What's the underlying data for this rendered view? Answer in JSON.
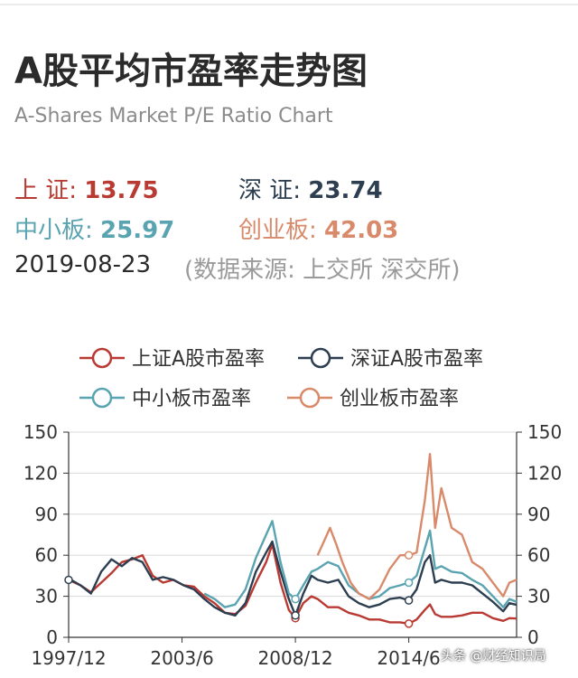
{
  "header": {
    "title": "A股平均市盈率走势图",
    "subtitle": "A-Shares Market P/E Ratio Chart"
  },
  "stats": {
    "sh": {
      "label": "上 证: ",
      "value": "13.75",
      "color": "#b93a32"
    },
    "sz": {
      "label": "深 证: ",
      "value": "23.74",
      "color": "#2c3e50"
    },
    "sme": {
      "label": "中小板: ",
      "value": "25.97",
      "color": "#5aa3b0"
    },
    "gem": {
      "label": "创业板: ",
      "value": "42.03",
      "color": "#d88a6a"
    }
  },
  "date": "2019-08-23",
  "source": "(数据来源: 上交所 深交所)",
  "watermark": "头条 @财经知识局",
  "chart_data": {
    "type": "line",
    "x_tick_labels": [
      "1997/12",
      "2003/6",
      "2008/12",
      "2014/6"
    ],
    "x_tick_dates": [
      1997.92,
      2003.42,
      2008.92,
      2014.42
    ],
    "x_range": [
      1997.92,
      2019.65
    ],
    "ylim": [
      0,
      150
    ],
    "y_ticks": [
      0,
      30,
      60,
      90,
      120,
      150
    ],
    "grid": true,
    "legend_position": "top",
    "series": [
      {
        "name": "上证A股市盈率",
        "color": "#b93a32",
        "points": [
          [
            1997.92,
            42
          ],
          [
            1998.5,
            38
          ],
          [
            1999.0,
            33
          ],
          [
            1999.5,
            40
          ],
          [
            2000.0,
            47
          ],
          [
            2000.5,
            55
          ],
          [
            2001.0,
            57
          ],
          [
            2001.5,
            60
          ],
          [
            2002.0,
            45
          ],
          [
            2002.5,
            40
          ],
          [
            2003.0,
            42
          ],
          [
            2003.5,
            38
          ],
          [
            2004.0,
            37
          ],
          [
            2004.5,
            30
          ],
          [
            2005.0,
            25
          ],
          [
            2005.5,
            18
          ],
          [
            2006.0,
            17
          ],
          [
            2006.5,
            23
          ],
          [
            2007.0,
            40
          ],
          [
            2007.5,
            55
          ],
          [
            2007.8,
            68
          ],
          [
            2008.2,
            40
          ],
          [
            2008.6,
            20
          ],
          [
            2008.92,
            14
          ],
          [
            2009.3,
            25
          ],
          [
            2009.7,
            30
          ],
          [
            2010.0,
            28
          ],
          [
            2010.5,
            22
          ],
          [
            2011.0,
            22
          ],
          [
            2011.5,
            18
          ],
          [
            2012.0,
            16
          ],
          [
            2012.5,
            13
          ],
          [
            2013.0,
            13
          ],
          [
            2013.5,
            11
          ],
          [
            2014.0,
            11
          ],
          [
            2014.42,
            10
          ],
          [
            2014.8,
            13
          ],
          [
            2015.2,
            20
          ],
          [
            2015.45,
            24
          ],
          [
            2015.7,
            17
          ],
          [
            2016.0,
            15
          ],
          [
            2016.5,
            15
          ],
          [
            2017.0,
            16
          ],
          [
            2017.5,
            18
          ],
          [
            2018.0,
            18
          ],
          [
            2018.5,
            14
          ],
          [
            2019.0,
            12
          ],
          [
            2019.3,
            14
          ],
          [
            2019.65,
            13.75
          ]
        ],
        "markers": [
          [
            2008.92,
            14
          ],
          [
            2014.42,
            10
          ]
        ]
      },
      {
        "name": "深证A股市盈率",
        "color": "#2c3e50",
        "points": [
          [
            1997.92,
            43
          ],
          [
            1998.5,
            38
          ],
          [
            1999.0,
            32
          ],
          [
            1999.5,
            48
          ],
          [
            2000.0,
            57
          ],
          [
            2000.5,
            52
          ],
          [
            2001.0,
            58
          ],
          [
            2001.5,
            55
          ],
          [
            2002.0,
            42
          ],
          [
            2002.5,
            44
          ],
          [
            2003.0,
            42
          ],
          [
            2003.5,
            38
          ],
          [
            2004.0,
            35
          ],
          [
            2004.5,
            28
          ],
          [
            2005.0,
            22
          ],
          [
            2005.5,
            18
          ],
          [
            2006.0,
            16
          ],
          [
            2006.5,
            25
          ],
          [
            2007.0,
            48
          ],
          [
            2007.5,
            62
          ],
          [
            2007.8,
            70
          ],
          [
            2008.2,
            48
          ],
          [
            2008.6,
            28
          ],
          [
            2008.92,
            16
          ],
          [
            2009.3,
            32
          ],
          [
            2009.7,
            45
          ],
          [
            2010.0,
            42
          ],
          [
            2010.5,
            40
          ],
          [
            2011.0,
            42
          ],
          [
            2011.5,
            30
          ],
          [
            2012.0,
            25
          ],
          [
            2012.5,
            22
          ],
          [
            2013.0,
            24
          ],
          [
            2013.5,
            28
          ],
          [
            2014.0,
            29
          ],
          [
            2014.42,
            27
          ],
          [
            2014.8,
            35
          ],
          [
            2015.2,
            55
          ],
          [
            2015.45,
            60
          ],
          [
            2015.7,
            40
          ],
          [
            2016.0,
            42
          ],
          [
            2016.5,
            40
          ],
          [
            2017.0,
            40
          ],
          [
            2017.5,
            38
          ],
          [
            2018.0,
            32
          ],
          [
            2018.5,
            26
          ],
          [
            2019.0,
            19
          ],
          [
            2019.3,
            25
          ],
          [
            2019.65,
            23.74
          ]
        ],
        "markers": [
          [
            2008.92,
            16
          ],
          [
            2014.42,
            27
          ]
        ]
      },
      {
        "name": "中小板市盈率",
        "color": "#5aa3b0",
        "points": [
          [
            2004.5,
            32
          ],
          [
            2005.0,
            28
          ],
          [
            2005.5,
            22
          ],
          [
            2006.0,
            24
          ],
          [
            2006.5,
            35
          ],
          [
            2007.0,
            58
          ],
          [
            2007.5,
            75
          ],
          [
            2007.8,
            85
          ],
          [
            2008.2,
            55
          ],
          [
            2008.6,
            32
          ],
          [
            2008.92,
            28
          ],
          [
            2009.3,
            38
          ],
          [
            2009.7,
            48
          ],
          [
            2010.0,
            50
          ],
          [
            2010.5,
            55
          ],
          [
            2011.0,
            52
          ],
          [
            2011.5,
            38
          ],
          [
            2012.0,
            32
          ],
          [
            2012.5,
            28
          ],
          [
            2013.0,
            30
          ],
          [
            2013.5,
            36
          ],
          [
            2014.0,
            38
          ],
          [
            2014.42,
            40
          ],
          [
            2014.8,
            45
          ],
          [
            2015.2,
            65
          ],
          [
            2015.45,
            78
          ],
          [
            2015.7,
            50
          ],
          [
            2016.0,
            52
          ],
          [
            2016.5,
            48
          ],
          [
            2017.0,
            47
          ],
          [
            2017.5,
            42
          ],
          [
            2018.0,
            38
          ],
          [
            2018.5,
            30
          ],
          [
            2019.0,
            22
          ],
          [
            2019.3,
            28
          ],
          [
            2019.65,
            25.97
          ]
        ],
        "markers": [
          [
            2008.92,
            28
          ],
          [
            2014.42,
            40
          ]
        ]
      },
      {
        "name": "创业板市盈率",
        "color": "#d88a6a",
        "points": [
          [
            2010.0,
            60
          ],
          [
            2010.3,
            70
          ],
          [
            2010.6,
            80
          ],
          [
            2010.9,
            68
          ],
          [
            2011.2,
            55
          ],
          [
            2011.6,
            40
          ],
          [
            2012.0,
            32
          ],
          [
            2012.5,
            28
          ],
          [
            2013.0,
            35
          ],
          [
            2013.5,
            50
          ],
          [
            2014.0,
            60
          ],
          [
            2014.42,
            60
          ],
          [
            2014.8,
            62
          ],
          [
            2015.2,
            100
          ],
          [
            2015.45,
            134
          ],
          [
            2015.7,
            80
          ],
          [
            2016.0,
            109
          ],
          [
            2016.5,
            80
          ],
          [
            2017.0,
            75
          ],
          [
            2017.5,
            55
          ],
          [
            2018.0,
            50
          ],
          [
            2018.5,
            40
          ],
          [
            2019.0,
            30
          ],
          [
            2019.3,
            40
          ],
          [
            2019.65,
            42.03
          ]
        ],
        "markers": [
          [
            2014.42,
            60
          ]
        ]
      }
    ]
  }
}
